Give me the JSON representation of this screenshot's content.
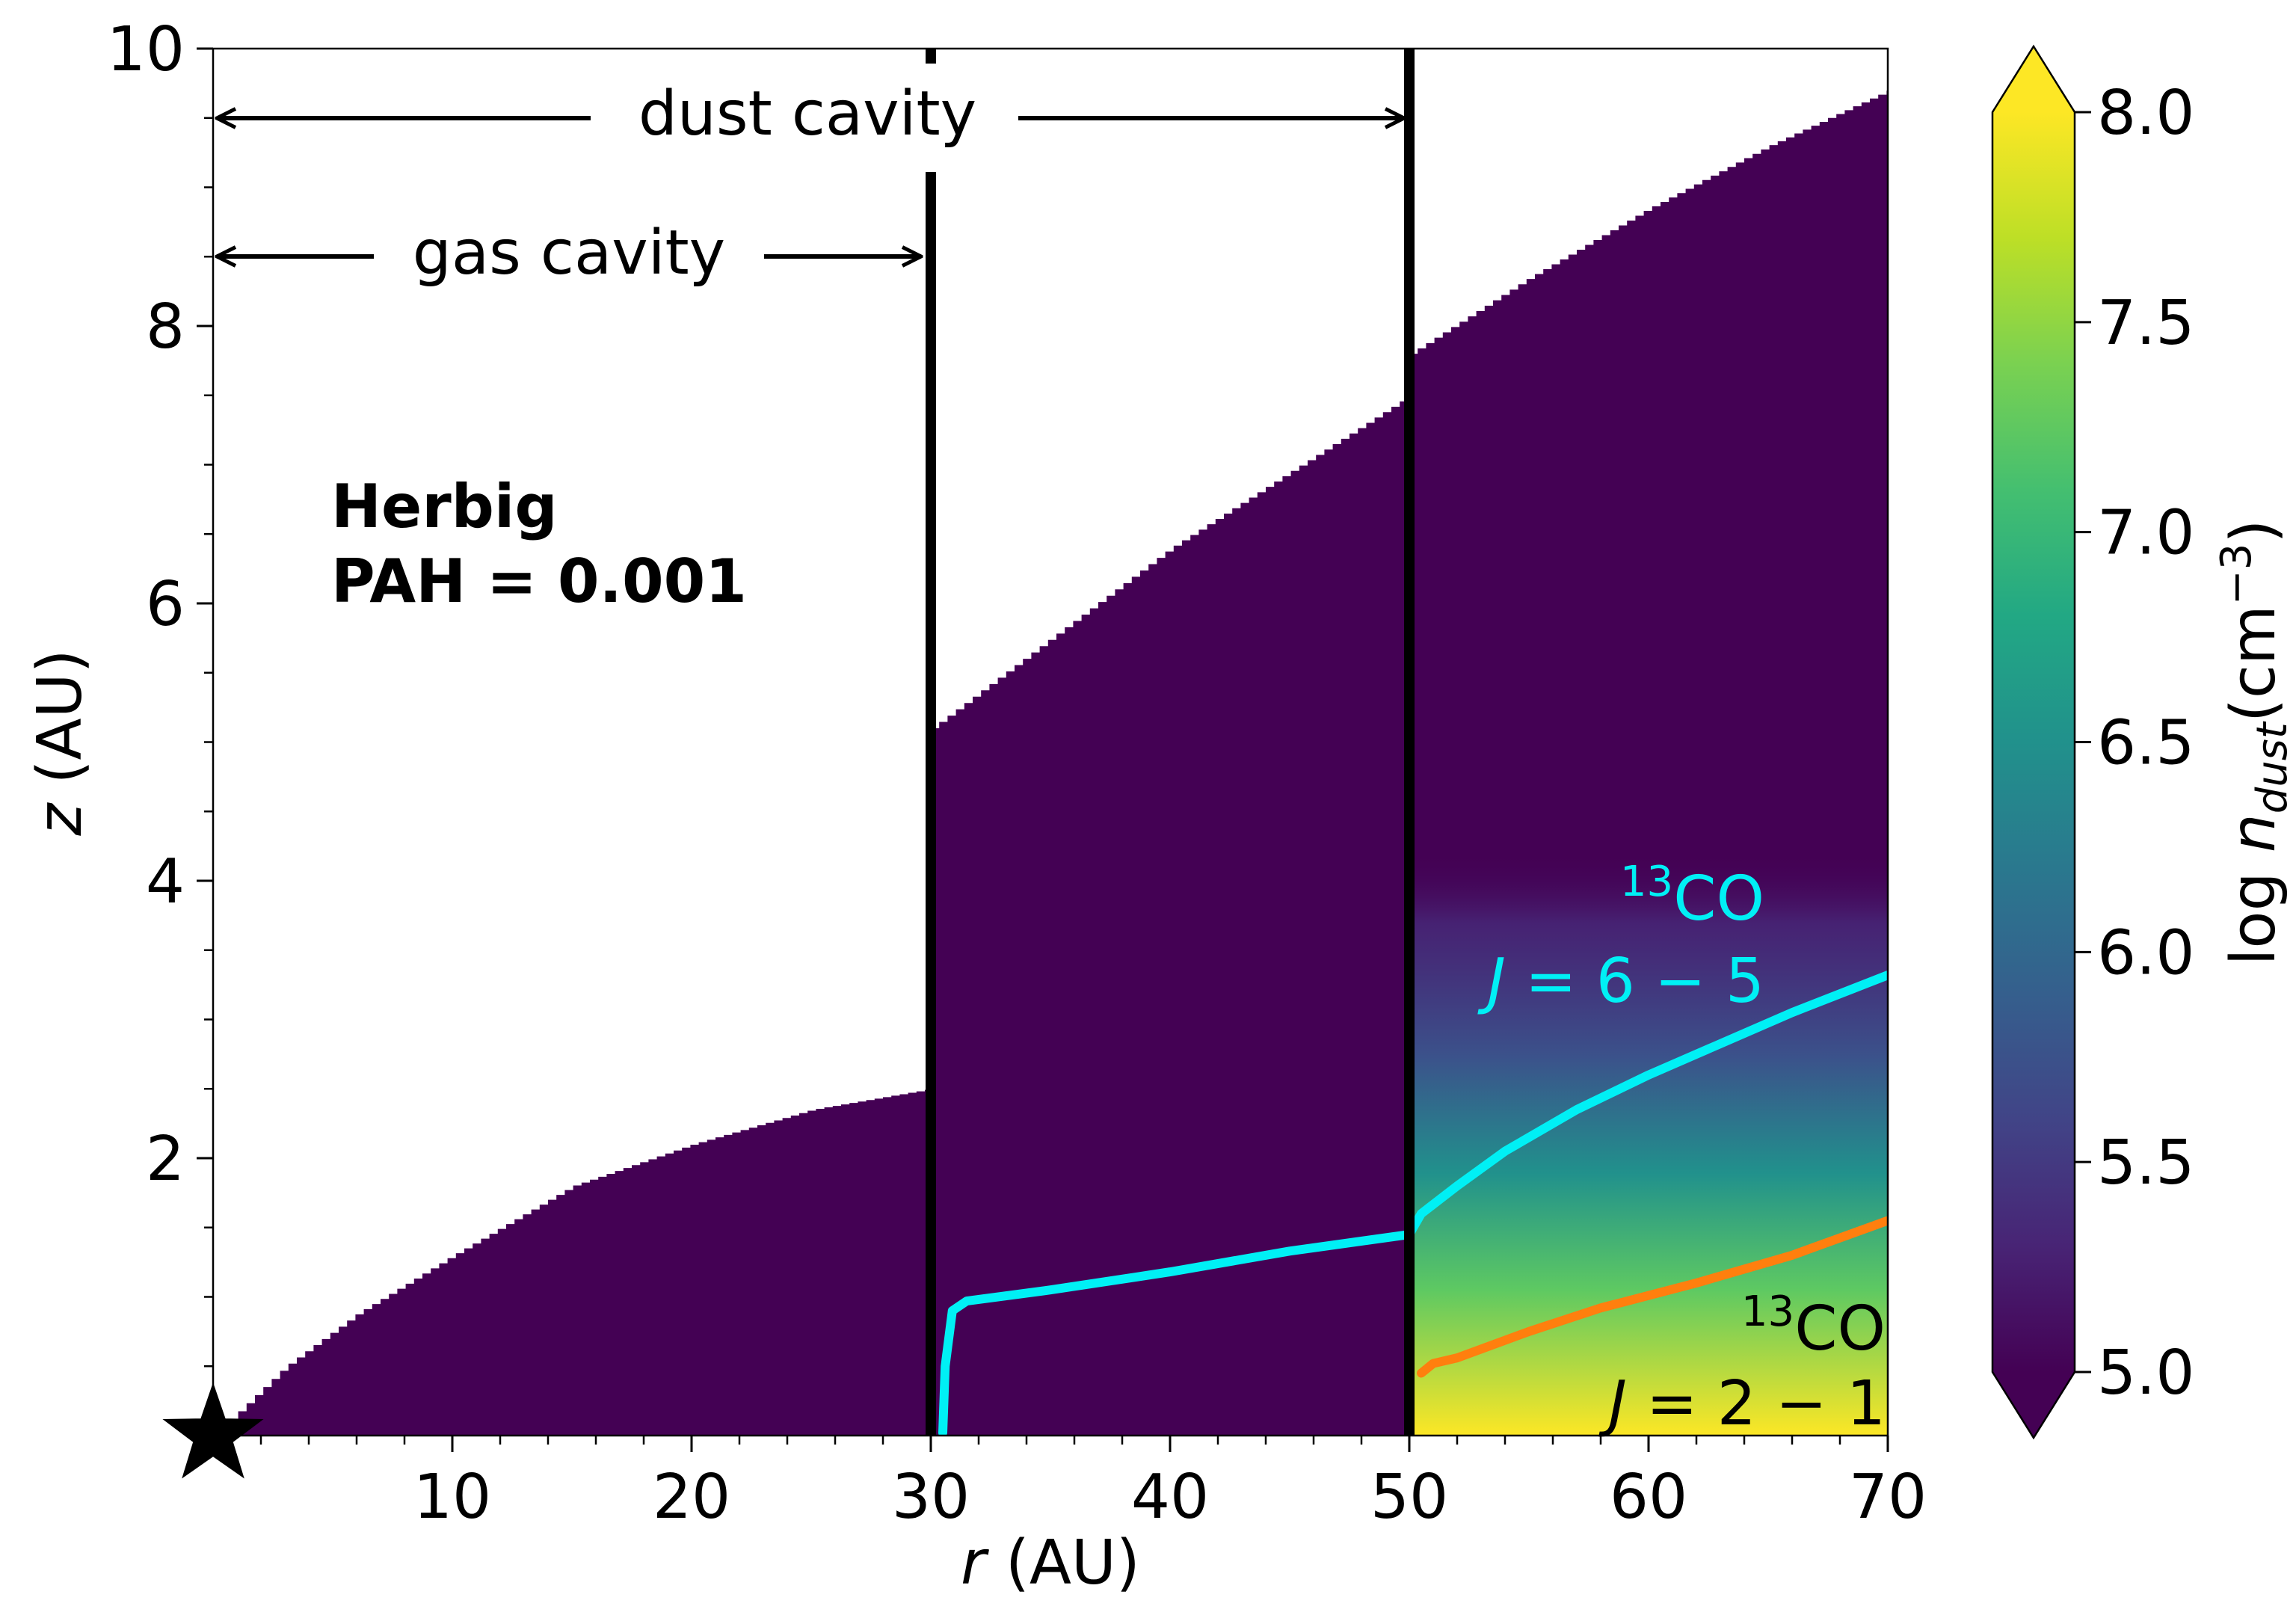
{
  "chart_data": {
    "type": "heatmap",
    "xlabel": {
      "italic": "r",
      "rest": " (AU)"
    },
    "ylabel": {
      "italic": "z",
      "rest": " (AU)"
    },
    "xlim": [
      0,
      70
    ],
    "ylim": [
      0,
      10
    ],
    "x_major_ticks": [
      10,
      20,
      30,
      40,
      50,
      60,
      70
    ],
    "y_major_ticks": [
      2,
      4,
      6,
      8,
      10
    ],
    "x_tick_labels": [
      "10",
      "20",
      "30",
      "40",
      "50",
      "60",
      "70"
    ],
    "y_tick_labels": [
      "2",
      "4",
      "6",
      "8",
      "10"
    ],
    "x_minor_step": 2,
    "y_minor_step": 0.5,
    "panel_label": [
      "Herbig",
      "PAH = 0.001"
    ],
    "annotations": {
      "dust_cavity": {
        "text": "dust cavity",
        "from_r": 0,
        "to_r": 50,
        "z": 9.5
      },
      "gas_cavity": {
        "text": "gas cavity",
        "from_r": 0,
        "to_r": 30,
        "z": 8.5
      }
    },
    "boundaries_r": [
      30,
      50
    ],
    "star_marker": {
      "r": 0,
      "z": 0
    },
    "dust_surface": {
      "comment_note": "",
      "segments": [
        {
          "r": [
            0,
            3,
            6,
            10,
            15,
            20,
            25,
            30
          ],
          "z": [
            0,
            0.5,
            0.88,
            1.3,
            1.8,
            2.1,
            2.35,
            2.5
          ]
        },
        {
          "r": [
            30,
            35,
            40,
            45,
            50
          ],
          "z": [
            5.1,
            5.75,
            6.4,
            6.95,
            7.5
          ]
        },
        {
          "r": [
            50,
            55,
            60,
            65,
            70
          ],
          "z": [
            7.8,
            8.35,
            8.85,
            9.3,
            9.7
          ]
        }
      ]
    },
    "colorbar": {
      "label": "log",
      "label_n": "n",
      "label_sub": "dust",
      "label_unit": "(cm",
      "label_exp": "−3",
      "label_close": ")",
      "min": 5.0,
      "max": 8.0,
      "ticks": [
        5.0,
        5.5,
        6.0,
        6.5,
        7.0,
        7.5,
        8.0
      ],
      "tick_labels": [
        "5.0",
        "5.5",
        "6.0",
        "6.5",
        "7.0",
        "7.5",
        "8.0"
      ],
      "extend": "both",
      "colormap": "viridis"
    },
    "series": [
      {
        "name_sup": "13",
        "name": "CO",
        "transition": [
          "J",
          " = 6 − 5"
        ],
        "color": "#00f0f5",
        "points": [
          [
            30.5,
            0.02
          ],
          [
            30.6,
            0.5
          ],
          [
            30.9,
            0.9
          ],
          [
            31.5,
            0.97
          ],
          [
            35,
            1.05
          ],
          [
            40,
            1.18
          ],
          [
            45,
            1.33
          ],
          [
            50,
            1.45
          ],
          [
            50.5,
            1.6
          ],
          [
            52,
            1.8
          ],
          [
            54,
            2.05
          ],
          [
            57,
            2.35
          ],
          [
            60,
            2.6
          ],
          [
            62,
            2.75
          ],
          [
            66,
            3.05
          ],
          [
            70,
            3.32
          ]
        ]
      },
      {
        "name_sup": "13",
        "name": "CO",
        "transition": [
          "J",
          " = 2 − 1"
        ],
        "color": "#ff7f0e",
        "points": [
          [
            50.5,
            0.45
          ],
          [
            51,
            0.52
          ],
          [
            52,
            0.56
          ],
          [
            55,
            0.75
          ],
          [
            58,
            0.92
          ],
          [
            62,
            1.1
          ],
          [
            66,
            1.3
          ],
          [
            70,
            1.55
          ]
        ]
      }
    ]
  }
}
